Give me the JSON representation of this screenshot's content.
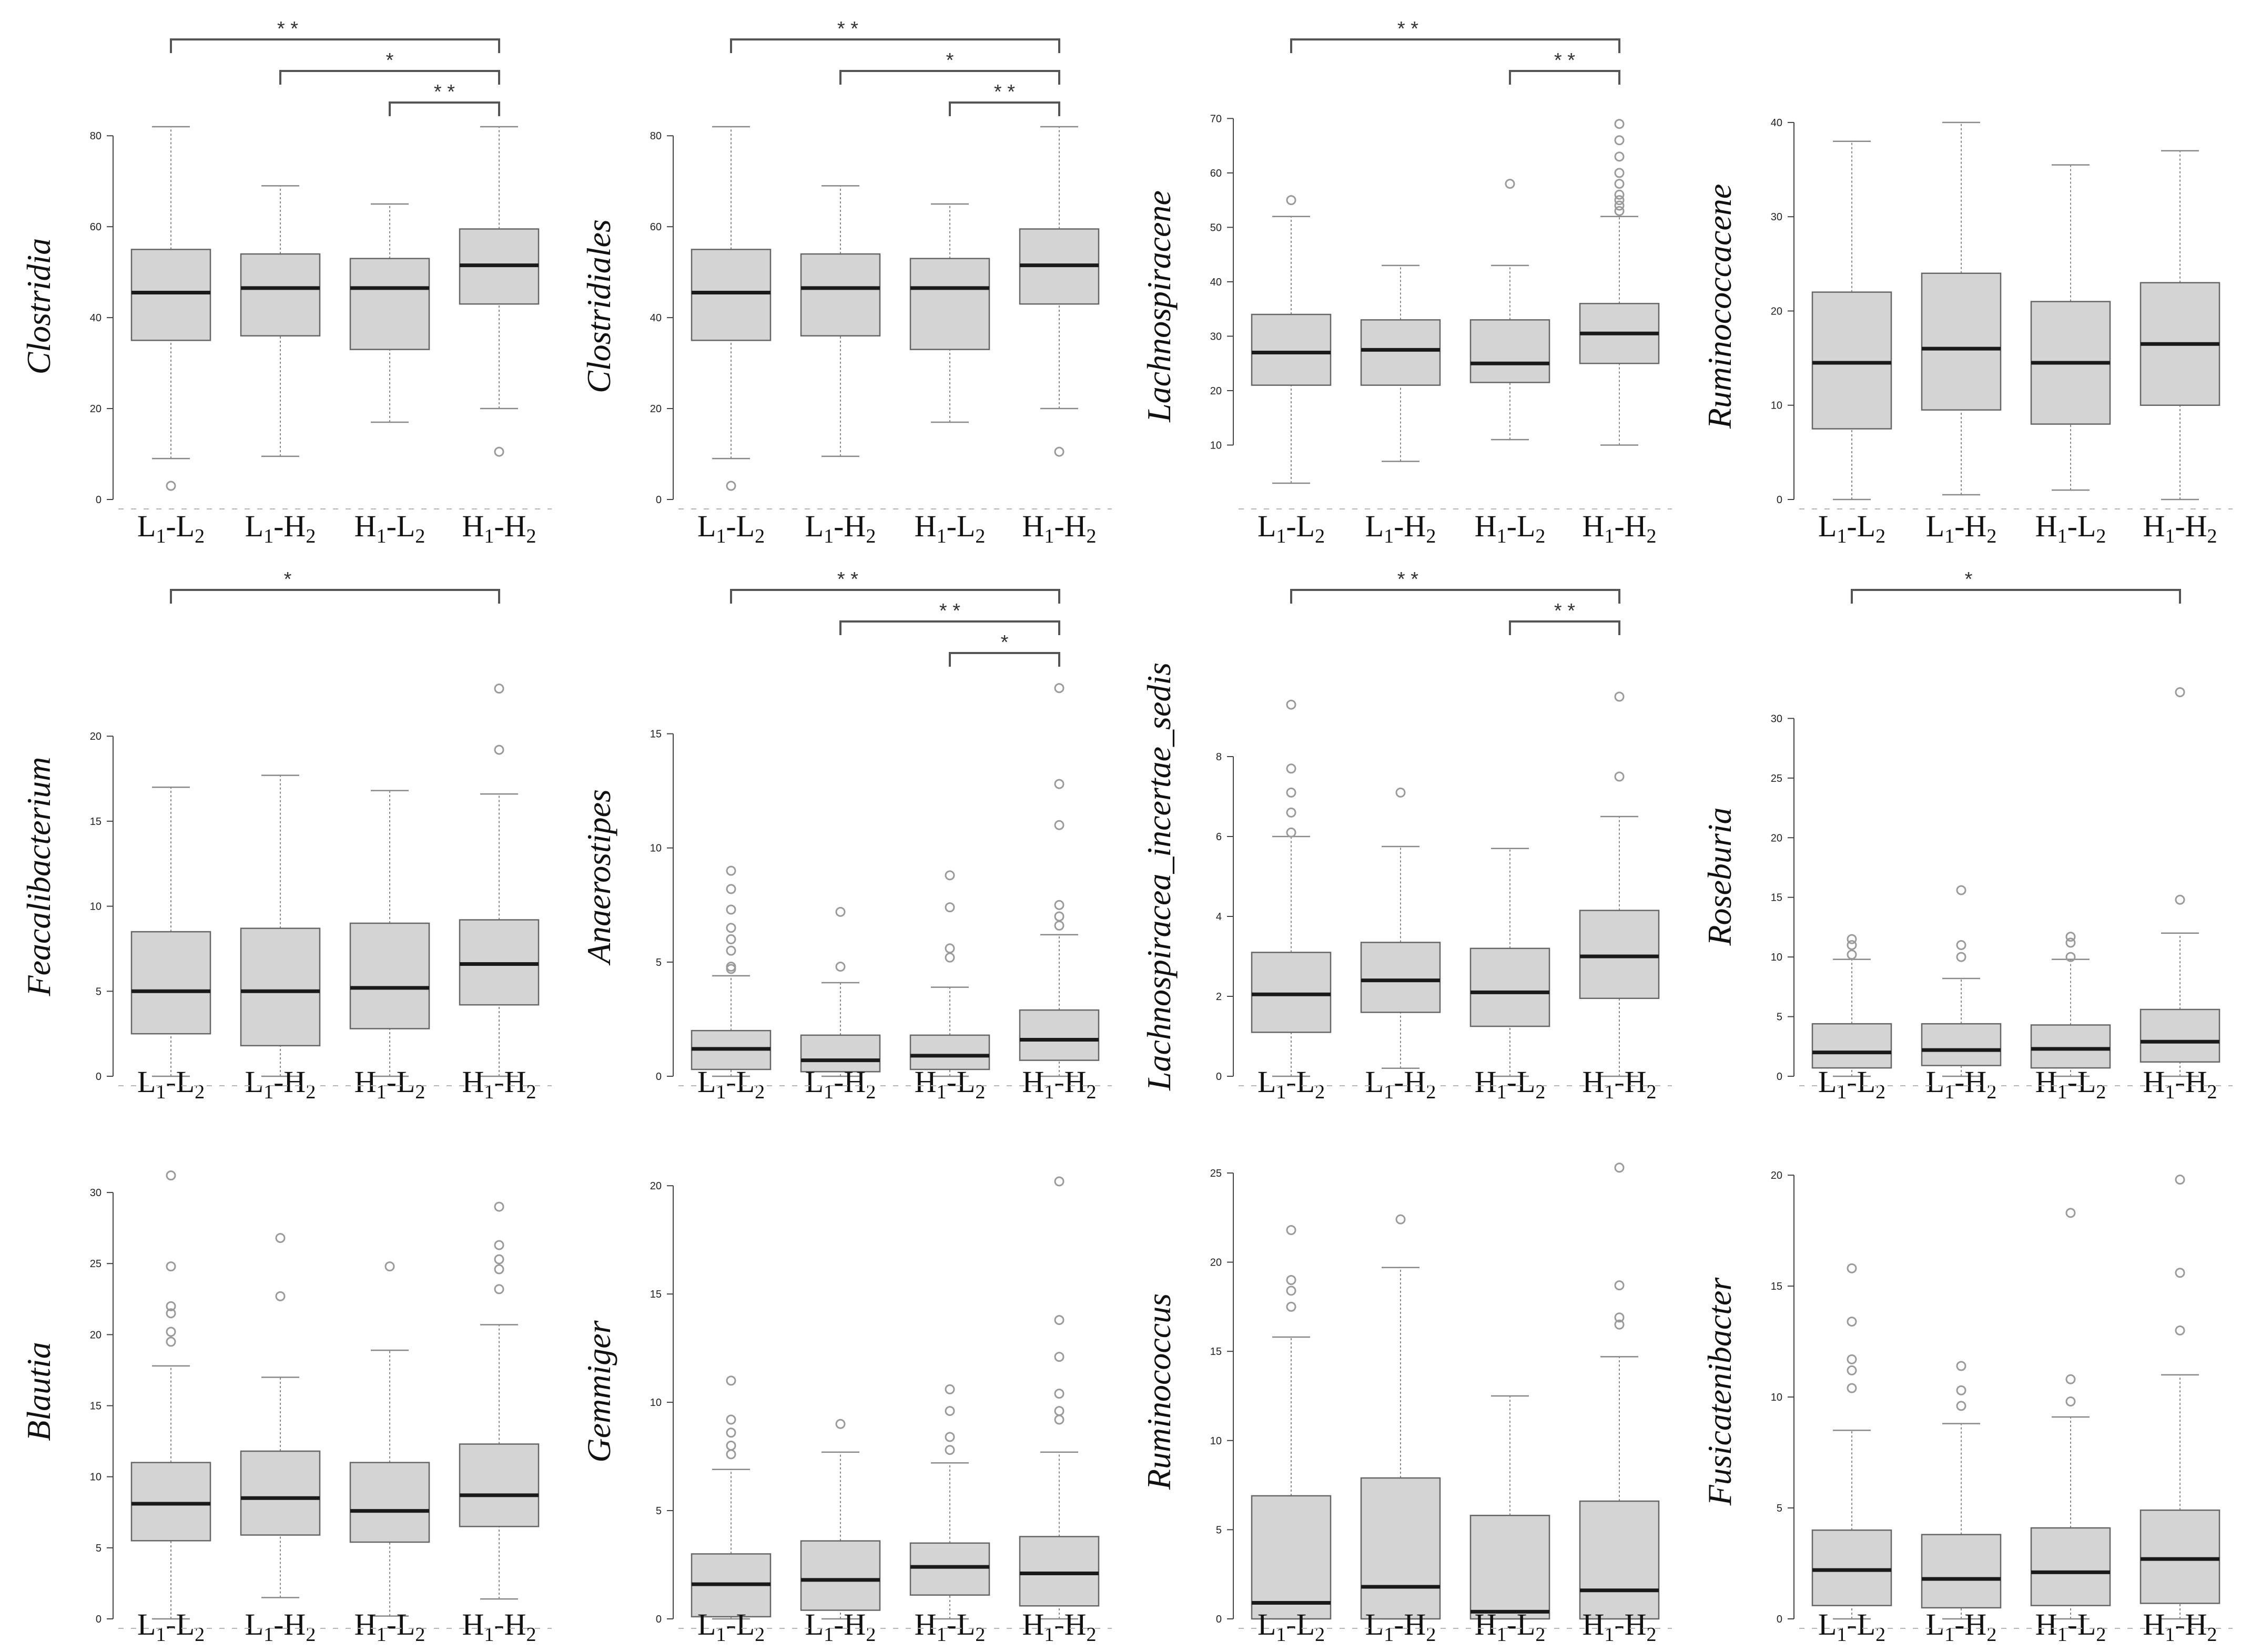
{
  "figure": {
    "title": ""
  },
  "colors": {
    "box_fill": "#d4d4d4",
    "box_stroke": "#666666",
    "median": "#1a1a1a",
    "whisker": "#888888",
    "outlier": "#9a9a9a",
    "axis": "#444444",
    "bracket": "#555555"
  },
  "chart_data": [
    {
      "type": "boxplot",
      "ylabel": "Clostridia",
      "ylim": [
        0,
        85
      ],
      "yticks": [
        0,
        20,
        40,
        60,
        80
      ],
      "categories": [
        "L1-L2",
        "L1-H2",
        "H1-L2",
        "H1-H2"
      ],
      "boxes": [
        {
          "min": 9,
          "q1": 35,
          "median": 45.5,
          "q3": 55,
          "max": 82,
          "outliers": [
            3
          ]
        },
        {
          "min": 9.5,
          "q1": 36,
          "median": 46.5,
          "q3": 54,
          "max": 69,
          "outliers": []
        },
        {
          "min": 17,
          "q1": 33,
          "median": 46.5,
          "q3": 53,
          "max": 65,
          "outliers": []
        },
        {
          "min": 20,
          "q1": 43,
          "median": 51.5,
          "q3": 59.5,
          "max": 82,
          "outliers": [
            10.5
          ]
        }
      ],
      "significance": [
        {
          "from": 0,
          "to": 3,
          "label": "* *"
        },
        {
          "from": 1,
          "to": 3,
          "label": "*"
        },
        {
          "from": 2,
          "to": 3,
          "label": "* *"
        }
      ]
    },
    {
      "type": "boxplot",
      "ylabel": "Clostridiales",
      "ylim": [
        0,
        85
      ],
      "yticks": [
        0,
        20,
        40,
        60,
        80
      ],
      "categories": [
        "L1-L2",
        "L1-H2",
        "H1-L2",
        "H1-H2"
      ],
      "boxes": [
        {
          "min": 9,
          "q1": 35,
          "median": 45.5,
          "q3": 55,
          "max": 82,
          "outliers": [
            3
          ]
        },
        {
          "min": 9.5,
          "q1": 36,
          "median": 46.5,
          "q3": 54,
          "max": 69,
          "outliers": []
        },
        {
          "min": 17,
          "q1": 33,
          "median": 46.5,
          "q3": 53,
          "max": 65,
          "outliers": []
        },
        {
          "min": 20,
          "q1": 43,
          "median": 51.5,
          "q3": 59.5,
          "max": 82,
          "outliers": [
            10.5
          ]
        }
      ],
      "significance": [
        {
          "from": 0,
          "to": 3,
          "label": "* *"
        },
        {
          "from": 1,
          "to": 3,
          "label": "*"
        },
        {
          "from": 2,
          "to": 3,
          "label": "* *"
        }
      ]
    },
    {
      "type": "boxplot",
      "ylabel": "Lachnospiracene",
      "ylim": [
        0,
        71
      ],
      "yticks": [
        10,
        20,
        30,
        40,
        50,
        60,
        70
      ],
      "categories": [
        "L1-L2",
        "L1-H2",
        "H1-L2",
        "H1-H2"
      ],
      "boxes": [
        {
          "min": 3,
          "q1": 21,
          "median": 27,
          "q3": 34,
          "max": 52,
          "outliers": [
            55
          ]
        },
        {
          "min": 7,
          "q1": 21,
          "median": 27.5,
          "q3": 33,
          "max": 43,
          "outliers": []
        },
        {
          "min": 11,
          "q1": 21.5,
          "median": 25,
          "q3": 33,
          "max": 43,
          "outliers": [
            58
          ]
        },
        {
          "min": 10,
          "q1": 25,
          "median": 30.5,
          "q3": 36,
          "max": 52,
          "outliers": [
            53,
            54,
            55,
            56,
            58,
            60,
            63,
            66,
            69
          ]
        }
      ],
      "significance": [
        {
          "from": 0,
          "to": 3,
          "label": "* *"
        },
        {
          "from": 2,
          "to": 3,
          "label": "* *"
        }
      ]
    },
    {
      "type": "boxplot",
      "ylabel": "Ruminococcacene",
      "ylim": [
        0,
        41
      ],
      "yticks": [
        0,
        10,
        20,
        30,
        40
      ],
      "categories": [
        "L1-L2",
        "L1-H2",
        "H1-L2",
        "H1-H2"
      ],
      "boxes": [
        {
          "min": 0,
          "q1": 7.5,
          "median": 14.5,
          "q3": 22,
          "max": 38,
          "outliers": []
        },
        {
          "min": 0.5,
          "q1": 9.5,
          "median": 16,
          "q3": 24,
          "max": 40,
          "outliers": []
        },
        {
          "min": 1,
          "q1": 8,
          "median": 14.5,
          "q3": 21,
          "max": 35.5,
          "outliers": []
        },
        {
          "min": 0,
          "q1": 10,
          "median": 16.5,
          "q3": 23,
          "max": 37,
          "outliers": []
        }
      ],
      "significance": []
    },
    {
      "type": "boxplot",
      "ylabel": "Feacalibacterium",
      "ylim": [
        0,
        23.5
      ],
      "yticks": [
        0,
        5,
        10,
        15,
        20
      ],
      "categories": [
        "L1-L2",
        "L1-H2",
        "H1-L2",
        "H1-H2"
      ],
      "boxes": [
        {
          "min": 0,
          "q1": 2.5,
          "median": 5,
          "q3": 8.5,
          "max": 17,
          "outliers": []
        },
        {
          "min": 0,
          "q1": 1.8,
          "median": 5,
          "q3": 8.7,
          "max": 17.7,
          "outliers": []
        },
        {
          "min": 0,
          "q1": 2.8,
          "median": 5.2,
          "q3": 9,
          "max": 16.8,
          "outliers": []
        },
        {
          "min": 0,
          "q1": 4.2,
          "median": 6.6,
          "q3": 9.2,
          "max": 16.6,
          "outliers": [
            19.2,
            22.8
          ]
        }
      ],
      "significance": [
        {
          "from": 0,
          "to": 3,
          "label": "*"
        }
      ]
    },
    {
      "type": "boxplot",
      "ylabel": "Anaerostipes",
      "ylim": [
        0,
        17.5
      ],
      "yticks": [
        0,
        5,
        10,
        15
      ],
      "categories": [
        "L1-L2",
        "L1-H2",
        "H1-L2",
        "H1-H2"
      ],
      "boxes": [
        {
          "min": 0,
          "q1": 0.3,
          "median": 1.2,
          "q3": 2,
          "max": 4.4,
          "outliers": [
            4.7,
            4.8,
            5.5,
            6,
            6.5,
            7.3,
            8.2,
            9
          ]
        },
        {
          "min": 0,
          "q1": 0.2,
          "median": 0.7,
          "q3": 1.8,
          "max": 4.1,
          "outliers": [
            4.8,
            7.2
          ]
        },
        {
          "min": 0,
          "q1": 0.3,
          "median": 0.9,
          "q3": 1.8,
          "max": 3.9,
          "outliers": [
            5.2,
            5.6,
            7.4,
            8.8
          ]
        },
        {
          "min": 0,
          "q1": 0.7,
          "median": 1.6,
          "q3": 2.9,
          "max": 6.2,
          "outliers": [
            6.6,
            7,
            7.5,
            11,
            12.8,
            17
          ]
        }
      ],
      "significance": [
        {
          "from": 0,
          "to": 3,
          "label": "* *"
        },
        {
          "from": 1,
          "to": 3,
          "label": "* *"
        },
        {
          "from": 2,
          "to": 3,
          "label": "*"
        }
      ]
    },
    {
      "type": "boxplot",
      "ylabel": "Lachnospiracea_incertae_sedis",
      "ylim": [
        0,
        10
      ],
      "yticks": [
        0,
        2,
        4,
        6,
        8
      ],
      "categories": [
        "L1-L2",
        "L1-H2",
        "H1-L2",
        "H1-H2"
      ],
      "boxes": [
        {
          "min": 0,
          "q1": 1.1,
          "median": 2.05,
          "q3": 3.1,
          "max": 6,
          "outliers": [
            6.1,
            6.6,
            7.1,
            7.7,
            9.3
          ]
        },
        {
          "min": 0.2,
          "q1": 1.6,
          "median": 2.4,
          "q3": 3.35,
          "max": 5.75,
          "outliers": [
            7.1
          ]
        },
        {
          "min": 0,
          "q1": 1.25,
          "median": 2.1,
          "q3": 3.2,
          "max": 5.7,
          "outliers": []
        },
        {
          "min": 0,
          "q1": 1.95,
          "median": 3,
          "q3": 4.15,
          "max": 6.5,
          "outliers": [
            7.5,
            9.5
          ]
        }
      ],
      "significance": [
        {
          "from": 0,
          "to": 3,
          "label": "* *"
        },
        {
          "from": 2,
          "to": 3,
          "label": "* *"
        }
      ]
    },
    {
      "type": "boxplot",
      "ylabel": "Roseburia",
      "ylim": [
        0,
        33.5
      ],
      "yticks": [
        0,
        5,
        10,
        15,
        20,
        25,
        30
      ],
      "categories": [
        "L1-L2",
        "L1-H2",
        "H1-L2",
        "H1-H2"
      ],
      "boxes": [
        {
          "min": 0,
          "q1": 0.7,
          "median": 2,
          "q3": 4.4,
          "max": 9.8,
          "outliers": [
            10.2,
            11,
            11.5
          ]
        },
        {
          "min": 0,
          "q1": 0.9,
          "median": 2.2,
          "q3": 4.4,
          "max": 8.2,
          "outliers": [
            10,
            11,
            15.6
          ]
        },
        {
          "min": 0,
          "q1": 0.7,
          "median": 2.3,
          "q3": 4.3,
          "max": 9.8,
          "outliers": [
            10,
            11.2,
            11.7
          ]
        },
        {
          "min": 0,
          "q1": 1.2,
          "median": 2.9,
          "q3": 5.6,
          "max": 12,
          "outliers": [
            14.8,
            32.2
          ]
        }
      ],
      "significance": [
        {
          "from": 0,
          "to": 3,
          "label": "*"
        }
      ]
    },
    {
      "type": "boxplot",
      "ylabel": "Blautia",
      "ylim": [
        0,
        32
      ],
      "yticks": [
        0,
        5,
        10,
        15,
        20,
        25,
        30
      ],
      "categories": [
        "L1-L2",
        "L1-H2",
        "H1-L2",
        "H1-H2"
      ],
      "boxes": [
        {
          "min": 0,
          "q1": 5.5,
          "median": 8.1,
          "q3": 11,
          "max": 17.8,
          "outliers": [
            19.5,
            20.2,
            21.5,
            22,
            24.8,
            31.2
          ]
        },
        {
          "min": 1.5,
          "q1": 5.9,
          "median": 8.5,
          "q3": 11.8,
          "max": 17,
          "outliers": [
            22.7,
            26.8
          ]
        },
        {
          "min": 0.2,
          "q1": 5.4,
          "median": 7.6,
          "q3": 11,
          "max": 18.9,
          "outliers": [
            24.8
          ]
        },
        {
          "min": 1.4,
          "q1": 6.5,
          "median": 8.7,
          "q3": 12.3,
          "max": 20.7,
          "outliers": [
            23.2,
            24.6,
            25.3,
            26.3,
            29
          ]
        }
      ],
      "significance": []
    },
    {
      "type": "boxplot",
      "ylabel": "Gemmiger",
      "ylim": [
        0,
        21
      ],
      "yticks": [
        0,
        5,
        10,
        15,
        20
      ],
      "categories": [
        "L1-L2",
        "L1-H2",
        "H1-L2",
        "H1-H2"
      ],
      "boxes": [
        {
          "min": 0,
          "q1": 0.1,
          "median": 1.6,
          "q3": 3,
          "max": 6.9,
          "outliers": [
            7.6,
            8,
            8.6,
            9.2,
            11
          ]
        },
        {
          "min": 0,
          "q1": 0.4,
          "median": 1.8,
          "q3": 3.6,
          "max": 7.7,
          "outliers": [
            9
          ]
        },
        {
          "min": 0,
          "q1": 1.1,
          "median": 2.4,
          "q3": 3.5,
          "max": 7.2,
          "outliers": [
            7.8,
            8.4,
            9.6,
            10.6
          ]
        },
        {
          "min": 0,
          "q1": 0.6,
          "median": 2.1,
          "q3": 3.8,
          "max": 7.7,
          "outliers": [
            9.2,
            9.6,
            10.4,
            12.1,
            13.8,
            20.2
          ]
        }
      ],
      "significance": []
    },
    {
      "type": "boxplot",
      "ylabel": "Ruminococcus",
      "ylim": [
        0,
        25.5
      ],
      "yticks": [
        0,
        5,
        10,
        15,
        20,
        25
      ],
      "categories": [
        "L1-L2",
        "L1-H2",
        "H1-L2",
        "H1-H2"
      ],
      "boxes": [
        {
          "min": 0,
          "q1": 0,
          "median": 0.9,
          "q3": 6.9,
          "max": 15.8,
          "outliers": [
            17.5,
            18.4,
            19,
            21.8
          ]
        },
        {
          "min": 0,
          "q1": 0,
          "median": 1.8,
          "q3": 7.9,
          "max": 19.7,
          "outliers": [
            22.4
          ]
        },
        {
          "min": 0,
          "q1": 0,
          "median": 0.4,
          "q3": 5.8,
          "max": 12.5,
          "outliers": []
        },
        {
          "min": 0,
          "q1": 0,
          "median": 1.6,
          "q3": 6.6,
          "max": 14.7,
          "outliers": [
            16.5,
            16.9,
            18.7,
            25.3
          ]
        }
      ],
      "significance": []
    },
    {
      "type": "boxplot",
      "ylabel": "Fusicatenibacter",
      "ylim": [
        0,
        20.5
      ],
      "yticks": [
        0,
        5,
        10,
        15,
        20
      ],
      "categories": [
        "L1-L2",
        "L1-H2",
        "H1-L2",
        "H1-H2"
      ],
      "boxes": [
        {
          "min": 0,
          "q1": 0.6,
          "median": 2.2,
          "q3": 4,
          "max": 8.5,
          "outliers": [
            10.4,
            11.2,
            11.7,
            13.4,
            15.8
          ]
        },
        {
          "min": 0,
          "q1": 0.5,
          "median": 1.8,
          "q3": 3.8,
          "max": 8.8,
          "outliers": [
            9.6,
            10.3,
            11.4
          ]
        },
        {
          "min": 0,
          "q1": 0.6,
          "median": 2.1,
          "q3": 4.1,
          "max": 9.1,
          "outliers": [
            9.8,
            10.8,
            18.3
          ]
        },
        {
          "min": 0,
          "q1": 0.7,
          "median": 2.7,
          "q3": 4.9,
          "max": 11,
          "outliers": [
            13,
            15.6,
            19.8
          ]
        }
      ],
      "significance": []
    }
  ]
}
